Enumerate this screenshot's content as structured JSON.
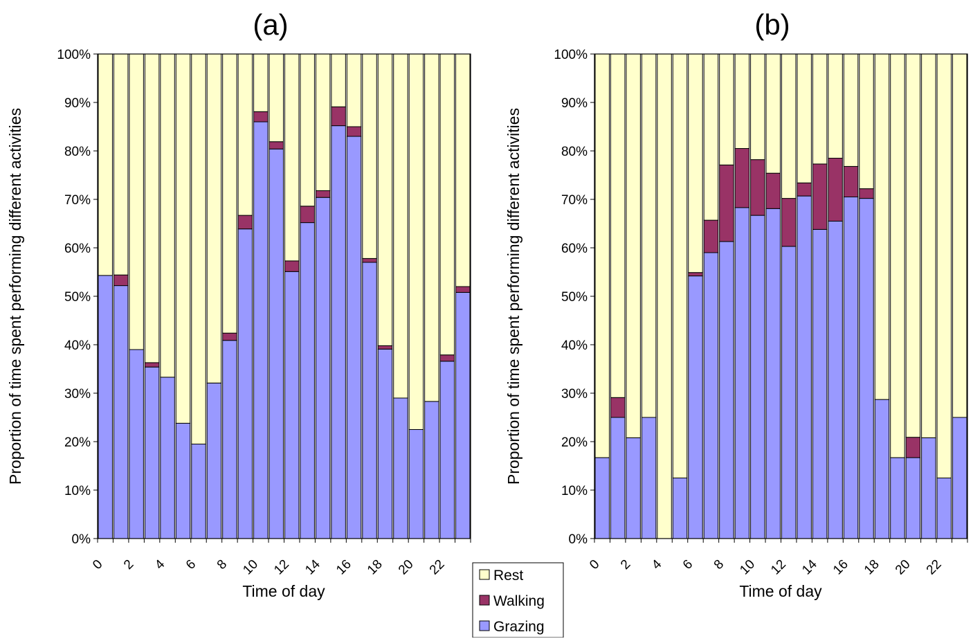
{
  "chart_data": [
    {
      "type": "bar",
      "stacked": true,
      "title": "(a)",
      "xlabel": "Time of day",
      "ylabel": "Proportion of time spent performing different activities",
      "ylim": [
        0,
        100
      ],
      "y_ticks": [
        "0%",
        "10%",
        "20%",
        "30%",
        "40%",
        "50%",
        "60%",
        "70%",
        "80%",
        "90%",
        "100%"
      ],
      "x_tick_labels": [
        "0",
        "2",
        "4",
        "6",
        "8",
        "10",
        "12",
        "14",
        "16",
        "18",
        "20",
        "22"
      ],
      "categories": [
        0,
        1,
        2,
        3,
        4,
        5,
        6,
        7,
        8,
        9,
        10,
        11,
        12,
        13,
        14,
        15,
        16,
        17,
        18,
        19,
        20,
        21,
        22,
        23
      ],
      "grid": false,
      "series": [
        {
          "name": "Grazing",
          "values": [
            54.3,
            52.2,
            39.0,
            35.4,
            33.3,
            23.8,
            19.5,
            32.1,
            40.9,
            63.9,
            86.0,
            80.4,
            55.1,
            65.2,
            70.4,
            85.2,
            83.0,
            57.0,
            39.1,
            29.0,
            22.5,
            28.3,
            36.6,
            50.8
          ]
        },
        {
          "name": "Walking",
          "values": [
            0.0,
            2.2,
            0.0,
            0.9,
            0.0,
            0.0,
            0.0,
            0.0,
            1.5,
            2.8,
            2.1,
            1.5,
            2.2,
            3.4,
            1.4,
            3.9,
            2.0,
            0.8,
            0.7,
            0.0,
            0.0,
            0.0,
            1.3,
            1.2
          ]
        },
        {
          "name": "Rest",
          "values": [
            45.7,
            45.6,
            61.0,
            63.7,
            66.7,
            76.2,
            80.5,
            67.9,
            57.6,
            33.3,
            11.9,
            18.1,
            42.7,
            31.4,
            28.2,
            10.9,
            15.0,
            42.2,
            60.2,
            71.0,
            77.5,
            71.7,
            62.1,
            48.0
          ]
        }
      ]
    },
    {
      "type": "bar",
      "stacked": true,
      "title": "(b)",
      "xlabel": "Time of day",
      "ylabel": "Proportion of time spent performing different activities",
      "ylim": [
        0,
        100
      ],
      "y_ticks": [
        "0%",
        "10%",
        "20%",
        "30%",
        "40%",
        "50%",
        "60%",
        "70%",
        "80%",
        "90%",
        "100%"
      ],
      "x_tick_labels": [
        "0",
        "2",
        "4",
        "6",
        "8",
        "10",
        "12",
        "14",
        "16",
        "18",
        "20",
        "22"
      ],
      "categories": [
        0,
        1,
        2,
        3,
        4,
        5,
        6,
        7,
        8,
        9,
        10,
        11,
        12,
        13,
        14,
        15,
        16,
        17,
        18,
        19,
        20,
        21,
        22,
        23
      ],
      "grid": false,
      "series": [
        {
          "name": "Grazing",
          "values": [
            16.7,
            25.0,
            20.8,
            25.0,
            0.0,
            12.5,
            54.2,
            59.0,
            61.3,
            68.3,
            66.7,
            68.1,
            60.3,
            70.7,
            63.8,
            65.5,
            70.5,
            70.2,
            28.7,
            16.7,
            16.7,
            20.8,
            12.5,
            25.0
          ]
        },
        {
          "name": "Walking",
          "values": [
            0.0,
            4.1,
            0.0,
            0.0,
            0.0,
            0.0,
            0.7,
            6.7,
            15.8,
            12.2,
            11.5,
            7.3,
            9.9,
            2.7,
            13.5,
            13.0,
            6.3,
            2.0,
            0.0,
            0.0,
            4.2,
            0.0,
            0.0,
            0.0
          ]
        },
        {
          "name": "Rest",
          "values": [
            83.3,
            70.9,
            79.2,
            75.0,
            100.0,
            87.5,
            45.1,
            34.3,
            22.9,
            19.5,
            21.8,
            24.6,
            29.8,
            26.6,
            22.7,
            21.5,
            23.2,
            27.8,
            71.3,
            83.3,
            79.1,
            79.2,
            87.5,
            75.0
          ]
        }
      ]
    }
  ],
  "legend": {
    "placement": "bottom-center",
    "entries": [
      {
        "name": "Rest",
        "color": "#ffffcc"
      },
      {
        "name": "Walking",
        "color": "#993366"
      },
      {
        "name": "Grazing",
        "color": "#9999ff"
      }
    ]
  },
  "colors": {
    "Grazing": "#9999ff",
    "Walking": "#993366",
    "Rest": "#ffffcc",
    "outline": "#000000"
  }
}
